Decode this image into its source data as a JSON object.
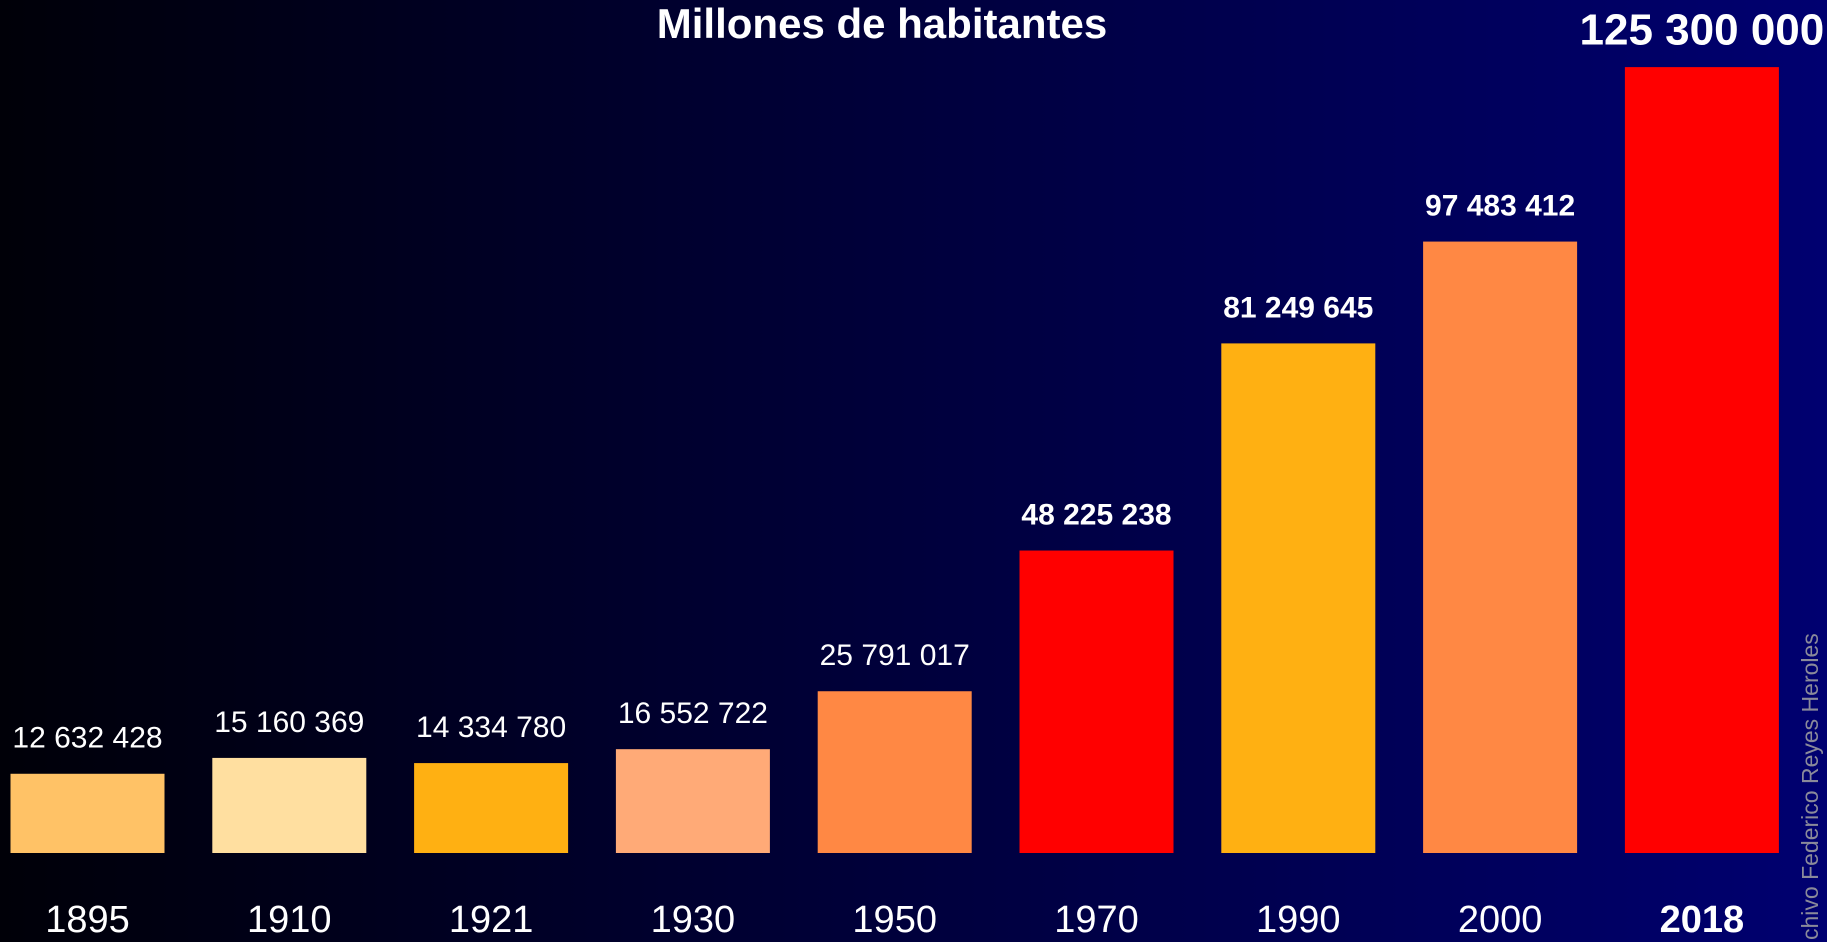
{
  "chart_data": {
    "type": "bar",
    "title": "Millones de habitantes",
    "categories": [
      "1895",
      "1910",
      "1921",
      "1930",
      "1950",
      "1970",
      "1990",
      "2000",
      "2018"
    ],
    "values": [
      12632428,
      15160369,
      14334780,
      16552722,
      25791017,
      48225238,
      81249645,
      97483412,
      125300000
    ],
    "value_labels": [
      "12 632 428",
      "15 160 369",
      "14 334 780",
      "16 552 722",
      "25 791 017",
      "48 225 238",
      "81 249 645",
      "97 483 412",
      "125 300 000"
    ],
    "colors": [
      "#FFC266",
      "#FFDFA0",
      "#FFB012",
      "#FFAA77",
      "#FF8844",
      "#FF0000",
      "#FFB012",
      "#FF8844",
      "#FF0000"
    ],
    "ylim": [
      0,
      136000000
    ],
    "source": "chivo Federico Reyes Heroles"
  }
}
